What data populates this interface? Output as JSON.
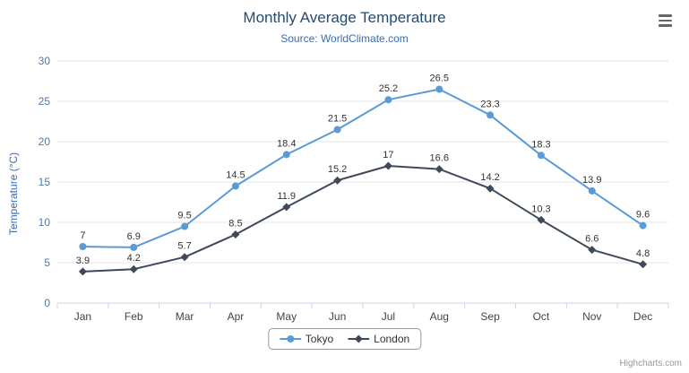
{
  "header": {
    "title": "Monthly Average Temperature",
    "subtitle": "Source: WorldClimate.com"
  },
  "credit": {
    "text": "Highcharts.com"
  },
  "menu": {
    "icon": "hamburger-menu-icon"
  },
  "colors": {
    "title": "#274b6d",
    "subtitle": "#3a6db5",
    "y_title": "#3a6db5",
    "y_labels": "#56779c",
    "x_labels": "#444444",
    "data_labels": "#333333",
    "grid": "#e6e6e6",
    "axis_line": "#ccd6eb",
    "legend_border": "#999999",
    "credit": "#999999"
  },
  "chart_data": {
    "type": "line",
    "title": "Monthly Average Temperature",
    "subtitle": "Source: WorldClimate.com",
    "categories": [
      "Jan",
      "Feb",
      "Mar",
      "Apr",
      "May",
      "Jun",
      "Jul",
      "Aug",
      "Sep",
      "Oct",
      "Nov",
      "Dec"
    ],
    "series": [
      {
        "name": "Tokyo",
        "color": "#5b9bd5",
        "marker": "circle",
        "values": [
          7,
          6.9,
          9.5,
          14.5,
          18.4,
          21.5,
          25.2,
          26.5,
          23.3,
          18.3,
          13.9,
          9.6
        ]
      },
      {
        "name": "London",
        "color": "#3e4a5a",
        "marker": "diamond",
        "values": [
          3.9,
          4.2,
          5.7,
          8.5,
          11.9,
          15.2,
          17,
          16.6,
          14.2,
          10.3,
          6.6,
          4.8
        ]
      }
    ],
    "xlabel": "",
    "ylabel": "Temperature (°C)",
    "ylim": [
      0,
      30
    ],
    "ytick_interval": 5,
    "grid": true,
    "data_labels": true,
    "legend_position": "bottom-center"
  }
}
